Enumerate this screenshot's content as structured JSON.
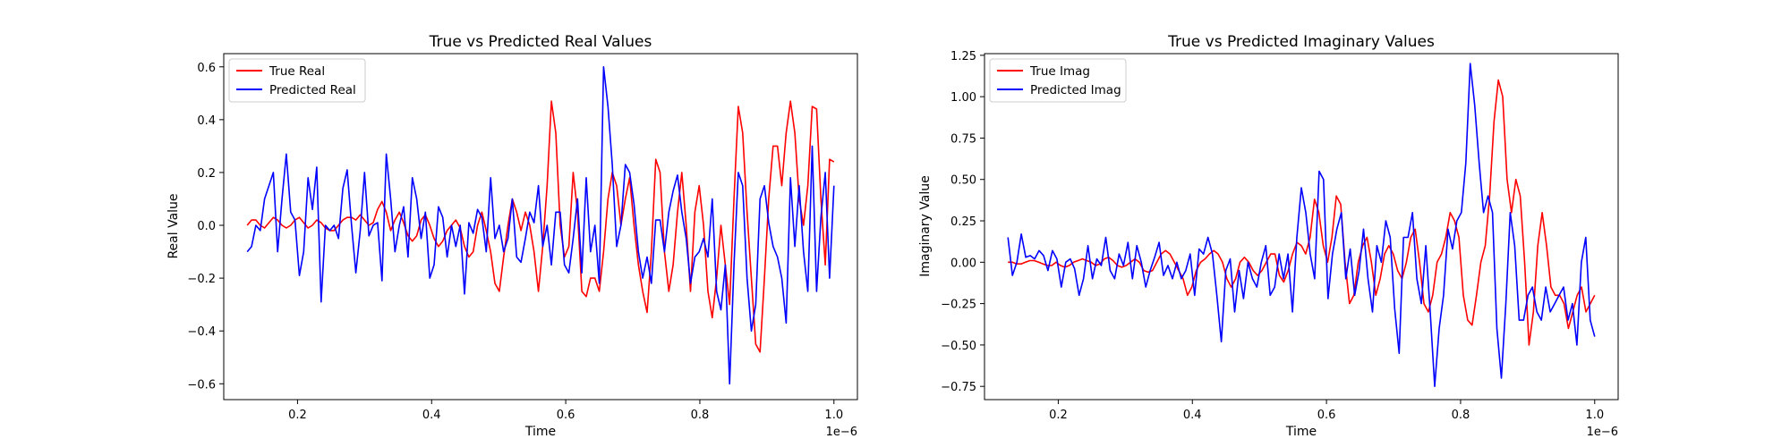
{
  "chart_data": [
    {
      "type": "line",
      "title": "True vs Predicted Real Values",
      "xlabel": "Time",
      "ylabel": "Real Value",
      "x_offset_label": "1e−6",
      "x_range": [
        1.25e-07,
        1e-06
      ],
      "xlim": [
        9e-08,
        1.035e-06
      ],
      "ylim": [
        -0.66,
        0.65
      ],
      "xticks": [
        0.2,
        0.4,
        0.6,
        0.8,
        1.0
      ],
      "xtick_labels": [
        "0.2",
        "0.4",
        "0.6",
        "0.8",
        "1.0"
      ],
      "yticks": [
        -0.6,
        -0.4,
        -0.2,
        0.0,
        0.2,
        0.4,
        0.6
      ],
      "ytick_labels": [
        "−0.6",
        "−0.4",
        "−0.2",
        "0.0",
        "0.2",
        "0.4",
        "0.6"
      ],
      "grid": false,
      "legend_position": "top-left",
      "series": [
        {
          "name": "True Real",
          "color": "#ff0000",
          "values": [
            0.0,
            0.02,
            0.02,
            0.0,
            -0.01,
            0.01,
            0.03,
            0.02,
            0.0,
            -0.01,
            0.0,
            0.02,
            0.03,
            0.01,
            -0.01,
            0.0,
            0.02,
            0.01,
            -0.01,
            -0.02,
            -0.02,
            0.0,
            0.02,
            0.03,
            0.03,
            0.02,
            0.04,
            0.02,
            0.0,
            0.01,
            0.06,
            0.09,
            0.05,
            -0.02,
            0.02,
            0.05,
            0.01,
            -0.04,
            -0.06,
            -0.04,
            0.02,
            0.04,
            0.0,
            -0.05,
            -0.08,
            -0.06,
            -0.02,
            0.0,
            0.02,
            -0.01,
            -0.08,
            -0.12,
            -0.1,
            0.0,
            0.05,
            -0.02,
            -0.1,
            -0.22,
            -0.25,
            -0.12,
            0.0,
            0.1,
            0.05,
            -0.02,
            0.05,
            0.0,
            -0.1,
            -0.25,
            -0.08,
            0.15,
            0.47,
            0.35,
            0.0,
            -0.12,
            -0.08,
            0.2,
            0.05,
            -0.25,
            -0.27,
            -0.2,
            -0.2,
            -0.25,
            -0.1,
            0.1,
            0.2,
            0.15,
            0.0,
            0.1,
            0.18,
            0.0,
            -0.15,
            -0.25,
            -0.33,
            -0.1,
            0.25,
            0.2,
            -0.1,
            -0.25,
            -0.15,
            0.05,
            0.2,
            0.0,
            -0.25,
            0.05,
            0.15,
            0.0,
            -0.25,
            -0.35,
            -0.2,
            0.0,
            -0.15,
            -0.3,
            0.1,
            0.45,
            0.35,
            0.05,
            -0.2,
            -0.45,
            -0.48,
            -0.2,
            0.1,
            0.3,
            0.3,
            0.15,
            0.35,
            0.47,
            0.35,
            0.1,
            0.0,
            0.15,
            0.45,
            0.44,
            0.1,
            -0.15,
            0.25,
            0.24
          ]
        },
        {
          "name": "Predicted Real",
          "color": "#0000ff",
          "values": [
            -0.1,
            -0.08,
            0.0,
            -0.02,
            0.1,
            0.15,
            0.2,
            -0.1,
            0.1,
            0.27,
            0.05,
            0.02,
            -0.19,
            -0.1,
            0.18,
            0.06,
            0.22,
            -0.29,
            0.0,
            -0.02,
            0.0,
            -0.05,
            0.14,
            0.21,
            0.0,
            -0.18,
            -0.02,
            0.2,
            -0.04,
            0.0,
            0.01,
            -0.21,
            0.27,
            0.1,
            -0.1,
            0.0,
            0.07,
            -0.12,
            0.18,
            0.1,
            -0.05,
            0.05,
            -0.2,
            -0.15,
            0.07,
            0.03,
            -0.12,
            0.0,
            -0.08,
            0.0,
            -0.26,
            0.01,
            -0.03,
            0.06,
            0.03,
            -0.1,
            0.18,
            -0.05,
            0.0,
            -0.1,
            -0.05,
            0.1,
            -0.12,
            -0.14,
            -0.05,
            0.05,
            0.01,
            0.15,
            -0.08,
            0.0,
            -0.15,
            0.05,
            0.05,
            -0.15,
            -0.18,
            -0.05,
            0.1,
            -0.18,
            0.18,
            -0.1,
            0.0,
            -0.22,
            0.6,
            0.45,
            0.23,
            -0.08,
            0.0,
            0.23,
            0.2,
            0.08,
            -0.1,
            -0.2,
            -0.12,
            -0.22,
            0.02,
            0.02,
            -0.1,
            0.05,
            0.13,
            0.19,
            0.05,
            -0.05,
            -0.22,
            -0.12,
            -0.1,
            -0.05,
            -0.12,
            0.1,
            -0.25,
            -0.32,
            -0.15,
            -0.6,
            -0.15,
            0.2,
            0.15,
            -0.2,
            -0.4,
            -0.3,
            0.1,
            0.15,
            0.01,
            -0.08,
            -0.12,
            -0.2,
            -0.37,
            0.18,
            -0.08,
            0.15,
            -0.1,
            -0.25,
            0.3,
            -0.25,
            0.03,
            0.2,
            -0.2,
            0.15
          ]
        }
      ]
    },
    {
      "type": "line",
      "title": "True vs Predicted Imaginary Values",
      "xlabel": "Time",
      "ylabel": "Imaginary Value",
      "x_offset_label": "1e−6",
      "x_range": [
        1.25e-07,
        1e-06
      ],
      "xlim": [
        9e-08,
        1.035e-06
      ],
      "ylim": [
        -0.83,
        1.26
      ],
      "xticks": [
        0.2,
        0.4,
        0.6,
        0.8,
        1.0
      ],
      "xtick_labels": [
        "0.2",
        "0.4",
        "0.6",
        "0.8",
        "1.0"
      ],
      "yticks": [
        -0.75,
        -0.5,
        -0.25,
        0.0,
        0.25,
        0.5,
        0.75,
        1.0,
        1.25
      ],
      "ytick_labels": [
        "−0.75",
        "−0.50",
        "−0.25",
        "0.00",
        "0.25",
        "0.50",
        "0.75",
        "1.00",
        "1.25"
      ],
      "grid": false,
      "legend_position": "top-left",
      "series": [
        {
          "name": "True Imag",
          "color": "#ff0000",
          "values": [
            0.0,
            0.0,
            -0.01,
            -0.01,
            0.0,
            0.01,
            0.01,
            0.0,
            -0.01,
            -0.02,
            -0.02,
            0.0,
            -0.02,
            -0.03,
            -0.02,
            0.0,
            0.01,
            0.02,
            0.01,
            0.0,
            -0.02,
            -0.01,
            0.02,
            0.03,
            0.01,
            -0.02,
            -0.03,
            -0.02,
            0.0,
            0.02,
            0.0,
            -0.05,
            -0.06,
            -0.05,
            0.0,
            0.05,
            0.07,
            0.05,
            0.0,
            -0.05,
            -0.1,
            -0.2,
            -0.15,
            -0.05,
            0.0,
            0.02,
            0.05,
            0.07,
            0.05,
            0.0,
            -0.1,
            -0.15,
            -0.1,
            0.0,
            0.03,
            0.0,
            -0.05,
            -0.08,
            -0.05,
            0.0,
            0.05,
            0.05,
            -0.08,
            -0.12,
            -0.05,
            0.05,
            0.12,
            0.1,
            0.05,
            0.15,
            0.38,
            0.3,
            0.1,
            0.0,
            0.15,
            0.4,
            0.35,
            0.0,
            -0.25,
            -0.2,
            0.0,
            0.1,
            0.15,
            0.0,
            -0.2,
            -0.1,
            0.05,
            0.1,
            0.05,
            -0.05,
            -0.1,
            0.0,
            0.15,
            0.2,
            0.0,
            -0.25,
            -0.3,
            -0.2,
            0.0,
            0.05,
            0.15,
            0.3,
            0.25,
            0.15,
            -0.2,
            -0.35,
            -0.38,
            -0.2,
            0.0,
            0.1,
            0.4,
            0.85,
            1.1,
            1.0,
            0.5,
            0.3,
            0.5,
            0.4,
            0.0,
            -0.5,
            -0.3,
            0.1,
            0.3,
            0.1,
            -0.15,
            -0.2,
            -0.2,
            -0.25,
            -0.4,
            -0.3,
            -0.2,
            -0.15,
            -0.3,
            -0.25,
            -0.2
          ]
        },
        {
          "name": "Predicted Imag",
          "color": "#0000ff",
          "values": [
            0.15,
            -0.08,
            0.0,
            0.17,
            0.03,
            0.04,
            0.02,
            0.07,
            0.04,
            -0.05,
            0.07,
            0.02,
            -0.15,
            0.0,
            0.02,
            -0.04,
            -0.2,
            -0.1,
            0.1,
            -0.1,
            0.02,
            -0.02,
            0.15,
            -0.05,
            -0.1,
            0.05,
            -0.02,
            0.12,
            -0.1,
            0.1,
            0.0,
            -0.15,
            -0.05,
            0.03,
            0.12,
            -0.08,
            -0.02,
            -0.1,
            0.0,
            -0.1,
            -0.05,
            0.05,
            -0.2,
            0.08,
            0.05,
            0.15,
            0.05,
            -0.2,
            -0.48,
            -0.05,
            0.02,
            -0.3,
            -0.05,
            -0.22,
            0.0,
            -0.1,
            -0.15,
            0.0,
            0.1,
            -0.2,
            -0.15,
            0.05,
            -0.1,
            0.05,
            -0.3,
            0.15,
            0.45,
            0.3,
            0.05,
            -0.1,
            0.55,
            0.5,
            -0.22,
            0.05,
            0.2,
            0.3,
            -0.1,
            0.08,
            -0.2,
            -0.05,
            0.2,
            -0.1,
            -0.3,
            0.1,
            0.0,
            0.25,
            0.15,
            -0.28,
            -0.55,
            0.15,
            0.15,
            0.3,
            -0.1,
            -0.25,
            0.1,
            -0.3,
            -0.75,
            -0.4,
            -0.2,
            0.2,
            0.08,
            0.25,
            0.3,
            0.6,
            1.2,
            0.95,
            0.6,
            0.3,
            0.4,
            0.3,
            -0.4,
            -0.7,
            -0.25,
            0.3,
            0.1,
            -0.35,
            -0.35,
            -0.2,
            -0.15,
            -0.3,
            -0.35,
            -0.15,
            -0.3,
            -0.25,
            -0.2,
            -0.15,
            -0.35,
            -0.25,
            -0.5,
            0.0,
            0.15,
            -0.35,
            -0.45
          ]
        }
      ]
    }
  ]
}
